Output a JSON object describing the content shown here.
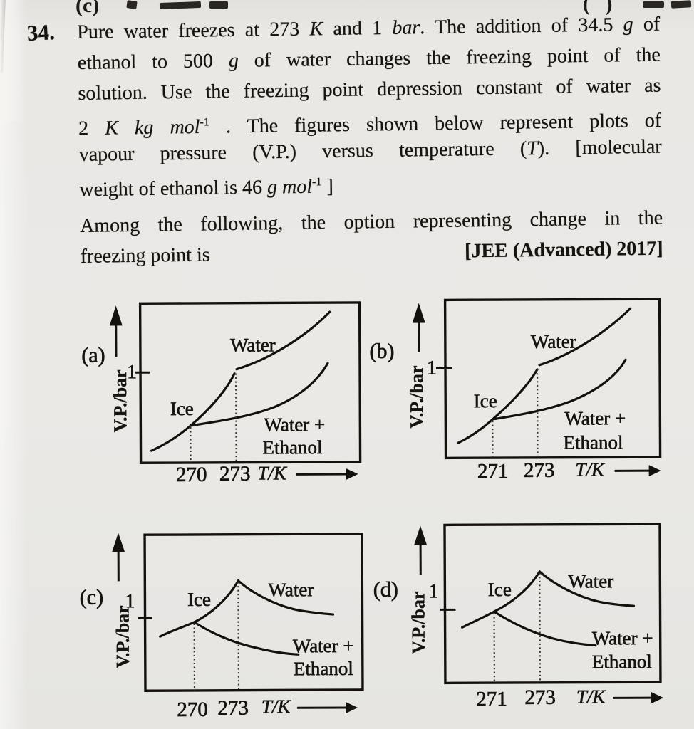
{
  "top_fragment": {
    "left_option": "(c)",
    "right_option": "( )"
  },
  "question": {
    "number": "34.",
    "lines": [
      {
        "segments": [
          {
            "t": "Pure water freezes at 273 "
          },
          {
            "t": "K",
            "i": 1
          },
          {
            "t": " and 1 "
          },
          {
            "t": "bar",
            "i": 1
          },
          {
            "t": ". The addition of 34.5 "
          },
          {
            "t": "g",
            "i": 1
          },
          {
            "t": " of"
          }
        ]
      },
      {
        "segments": [
          {
            "t": "ethanol to 500 "
          },
          {
            "t": "g",
            "i": 1
          },
          {
            "t": " of water changes the freezing point of the"
          }
        ]
      },
      {
        "segments": [
          {
            "t": "solution. Use the freezing point depression constant of water as"
          }
        ]
      },
      {
        "segments": [
          {
            "t": "2 "
          },
          {
            "t": "K kg mol",
            "i": 1
          },
          {
            "t": "-1",
            "sup": 1
          },
          {
            "t": " . The figures shown below represent plots of"
          }
        ]
      },
      {
        "segments": [
          {
            "t": "vapour pressure (V.P.) versus temperature ("
          },
          {
            "t": "T",
            "i": 1
          },
          {
            "t": "). [molecular"
          }
        ]
      },
      {
        "segments": [
          {
            "t": "weight of ethanol is 46 "
          },
          {
            "t": "g mol",
            "i": 1
          },
          {
            "t": "-1",
            "sup": 1
          },
          {
            "t": " ]"
          }
        ]
      }
    ],
    "prompt_lines": [
      {
        "segments": [
          {
            "t": "Among the following, the option representing change in the"
          }
        ]
      },
      {
        "segments": [
          {
            "t": "freezing point is"
          }
        ]
      }
    ],
    "source": "[JEE (Advanced) 2017]"
  },
  "figures": [
    {
      "option": "(a)",
      "y_axis_label": "V.P./bar",
      "y_tick": "1",
      "ice": "Ice",
      "water": "Water",
      "mix1": "Water +",
      "mix2": "Ethanol",
      "x_tick1": "270",
      "x_tick2": "273",
      "x_axis_label": "T/K"
    },
    {
      "option": "(b)",
      "y_axis_label": "V.P./bar",
      "y_tick": "1",
      "ice": "Ice",
      "water": "Water",
      "mix1": "Water +",
      "mix2": "Ethanol",
      "x_tick1": "271",
      "x_tick2": "273",
      "x_axis_label": "T/K"
    },
    {
      "option": "(c)",
      "y_axis_label": "V.P./bar",
      "y_tick": "1",
      "ice": "Ice",
      "water": "Water",
      "mix1": "Water +",
      "mix2": "Ethanol",
      "x_tick1": "270",
      "x_tick2": "273",
      "x_axis_label": "T/K"
    },
    {
      "option": "(d)",
      "y_axis_label": "V.P./bar",
      "y_tick": "1",
      "ice": "Ice",
      "water": "Water",
      "mix1": "Water +",
      "mix2": "Ethanol",
      "x_tick1": "271",
      "x_tick2": "273",
      "x_axis_label": "T/K"
    }
  ],
  "chart_data": [
    {
      "panel": "(a)",
      "type": "line",
      "curves": [
        "Ice",
        "Water",
        "Water + Ethanol"
      ],
      "x_ticks": [
        270,
        273
      ],
      "y_tick": 1,
      "xlabel": "T/K",
      "ylabel": "V.P./bar",
      "shape": "V.P. rising with T",
      "water_vp1_at_T": 273,
      "ice_solution_intersection_T": 270
    },
    {
      "panel": "(b)",
      "type": "line",
      "curves": [
        "Ice",
        "Water",
        "Water + Ethanol"
      ],
      "x_ticks": [
        271,
        273
      ],
      "y_tick": 1,
      "xlabel": "T/K",
      "ylabel": "V.P./bar",
      "shape": "V.P. rising with T",
      "water_vp1_at_T": 273,
      "ice_solution_intersection_T": 271
    },
    {
      "panel": "(c)",
      "type": "line",
      "curves": [
        "Ice",
        "Water",
        "Water + Ethanol"
      ],
      "x_ticks": [
        270,
        273
      ],
      "y_tick": 1,
      "xlabel": "T/K",
      "ylabel": "V.P./bar",
      "shape": "peak at 273 then falling",
      "ice_solution_intersection": {
        "T": 270,
        "VP": 1
      }
    },
    {
      "panel": "(d)",
      "type": "line",
      "curves": [
        "Ice",
        "Water",
        "Water + Ethanol"
      ],
      "x_ticks": [
        271,
        273
      ],
      "y_tick": 1,
      "xlabel": "T/K",
      "ylabel": "V.P./bar",
      "shape": "peak at 273 then falling",
      "ice_solution_intersection": {
        "T": 271,
        "VP": 1
      }
    }
  ]
}
